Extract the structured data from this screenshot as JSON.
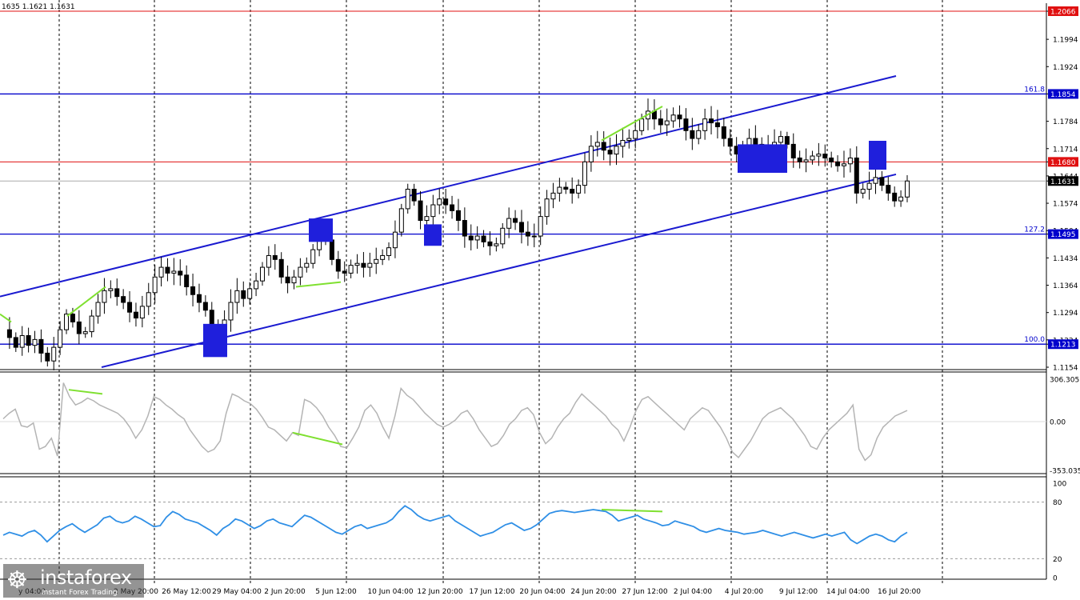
{
  "header": {
    "ohlc_text": "1635 1.1621 1.1631"
  },
  "watermark": {
    "logo_glyph": "☸",
    "brand": "instaforex",
    "tagline": "Instant Forex Trading"
  },
  "colors": {
    "candle": "#000000",
    "channel": "#1a1ad0",
    "hline_blue": "#0000cc",
    "hline_red": "#e01010",
    "box": "#1f1fdc",
    "divergence": "#7fe030",
    "cci": "#b4b4b4",
    "rsi": "#2f8fe6",
    "grid": "#000000",
    "label_bg_blue": "#0000cc",
    "label_bg_red": "#e01010",
    "label_bg_dark": "#000000"
  },
  "chart_data": [
    {
      "type": "candlestick",
      "symbol_pair_hint": "",
      "ylim": [
        1.1154,
        1.2066
      ],
      "y_ticks": [
        "1.2066",
        "1.1994",
        "1.1924",
        "1.1854",
        "1.1784",
        "1.1714",
        "1.1680",
        "1.1644",
        "1.1631",
        "1.1574",
        "1.1504",
        "1.1495",
        "1.1434",
        "1.1364",
        "1.1294",
        "1.1224",
        "1.1213",
        "1.1154"
      ],
      "x_ticks": [
        "26 May 12:00",
        "29 May 04:00",
        "2 Jun 20:00",
        "5 Jun 12:00",
        "10 Jun 04:00",
        "12 Jun 20:00",
        "17 Jun 12:00",
        "20 Jun 04:00",
        "24 Jun 20:00",
        "27 Jun 12:00",
        "2 Jul 04:00",
        "4 Jul 20:00",
        "9 Jul 12:00",
        "14 Jul 04:00",
        "16 Jul 20:00"
      ],
      "x_tick_partial_left": "y 04:00",
      "x_tick_partial_2": "2 May 20:00",
      "levels": [
        {
          "name": "level-2066",
          "price": 1.2066,
          "label": "1.2066",
          "color": "red",
          "fib": ""
        },
        {
          "name": "level-1854",
          "price": 1.1854,
          "label": "1.1854",
          "color": "blue",
          "fib": "161.8"
        },
        {
          "name": "level-1680",
          "price": 1.168,
          "label": "1.1680",
          "color": "red",
          "fib": ""
        },
        {
          "name": "level-1495",
          "price": 1.1495,
          "label": "1.1495",
          "color": "blue",
          "fib": "127.2"
        },
        {
          "name": "level-1213",
          "price": 1.1213,
          "label": "1.1213",
          "color": "blue",
          "fib": "100.0"
        }
      ],
      "current_price": {
        "price": 1.1631,
        "label": "1.1631"
      },
      "series": [
        {
          "name": "",
          "close_path": [
            1.125,
            1.123,
            1.1205,
            1.1235,
            1.121,
            1.1225,
            1.119,
            1.117,
            1.1205,
            1.125,
            1.129,
            1.127,
            1.124,
            1.1245,
            1.1285,
            1.132,
            1.135,
            1.1355,
            1.1335,
            1.132,
            1.1295,
            1.128,
            1.131,
            1.1345,
            1.1385,
            1.141,
            1.1395,
            1.14,
            1.139,
            1.136,
            1.134,
            1.132,
            1.13,
            1.126,
            1.123,
            1.1275,
            1.132,
            1.135,
            1.133,
            1.1355,
            1.1375,
            1.141,
            1.144,
            1.143,
            1.1385,
            1.137,
            1.1385,
            1.141,
            1.142,
            1.1455,
            1.15,
            1.148,
            1.143,
            1.14,
            1.1395,
            1.1415,
            1.142,
            1.141,
            1.142,
            1.143,
            1.144,
            1.146,
            1.15,
            1.156,
            1.161,
            1.158,
            1.153,
            1.154,
            1.157,
            1.1585,
            1.157,
            1.1555,
            1.153,
            1.149,
            1.148,
            1.149,
            1.1475,
            1.1465,
            1.147,
            1.151,
            1.1535,
            1.1525,
            1.15,
            1.149,
            1.149,
            1.154,
            1.1585,
            1.16,
            1.1615,
            1.161,
            1.16,
            1.162,
            1.168,
            1.172,
            1.173,
            1.171,
            1.17,
            1.172,
            1.1735,
            1.174,
            1.176,
            1.179,
            1.181,
            1.179,
            1.1775,
            1.1785,
            1.18,
            1.179,
            1.176,
            1.174,
            1.176,
            1.179,
            1.178,
            1.177,
            1.174,
            1.172,
            1.17,
            1.172,
            1.174,
            1.1725,
            1.1715,
            1.172,
            1.173,
            1.1745,
            1.1725,
            1.169,
            1.168,
            1.1685,
            1.1695,
            1.17,
            1.169,
            1.168,
            1.167,
            1.1675,
            1.169,
            1.16,
            1.161,
            1.1625,
            1.164,
            1.162,
            1.16,
            1.158,
            1.159,
            1.1631
          ]
        }
      ],
      "channel": {
        "upper": [
          [
            0,
            1.1335
          ],
          [
            1120,
            1.19
          ]
        ],
        "lower": [
          [
            127,
            1.1154
          ],
          [
            1120,
            1.1648
          ]
        ]
      },
      "boxes": [
        {
          "name": "box-29-may",
          "x": [
            254,
            284
          ],
          "y": [
            1.1265,
            1.118
          ]
        },
        {
          "name": "box-5-jun",
          "x": [
            386,
            416
          ],
          "y": [
            1.1535,
            1.1475
          ]
        },
        {
          "name": "box-12-jun",
          "x": [
            530,
            552
          ],
          "y": [
            1.152,
            1.1465
          ]
        },
        {
          "name": "box-4-jul",
          "x": [
            922,
            984
          ],
          "y": [
            1.1725,
            1.1652
          ]
        },
        {
          "name": "box-16-jul",
          "x": [
            1086,
            1108
          ],
          "y": [
            1.1734,
            1.166
          ]
        }
      ],
      "divergence_lines": [
        {
          "name": "div-price-1",
          "from": [
            0,
            1.129
          ],
          "to": [
            14,
            1.127
          ]
        },
        {
          "name": "div-price-2",
          "from": [
            84,
            1.1285
          ],
          "to": [
            132,
            1.136
          ]
        },
        {
          "name": "div-price-3",
          "from": [
            370,
            1.136
          ],
          "to": [
            426,
            1.1372
          ]
        },
        {
          "name": "div-price-4",
          "from": [
            752,
            1.1735
          ],
          "to": [
            828,
            1.1822
          ]
        }
      ]
    },
    {
      "type": "line",
      "name_hint": "CCI",
      "ylim": [
        -353.0356,
        306.3051
      ],
      "y_ticks": [
        "306.3051",
        "0.00",
        "-353.0356"
      ],
      "series": [
        {
          "name": "",
          "values": [
            20,
            60,
            90,
            -30,
            -40,
            -10,
            -200,
            -180,
            -120,
            -250,
            280,
            180,
            120,
            140,
            170,
            150,
            120,
            100,
            80,
            60,
            20,
            -40,
            -120,
            -60,
            40,
            180,
            160,
            120,
            90,
            50,
            20,
            -60,
            -120,
            -180,
            -220,
            -200,
            -140,
            60,
            200,
            180,
            150,
            130,
            90,
            30,
            -40,
            -60,
            -100,
            -140,
            -80,
            -100,
            160,
            140,
            100,
            40,
            -40,
            -100,
            -180,
            -190,
            -120,
            -40,
            80,
            120,
            60,
            -40,
            -120,
            40,
            240,
            190,
            160,
            110,
            60,
            20,
            -20,
            -40,
            -20,
            10,
            60,
            80,
            20,
            -60,
            -120,
            -180,
            -160,
            -100,
            -20,
            20,
            80,
            100,
            50,
            -80,
            -160,
            -120,
            -40,
            20,
            60,
            140,
            200,
            160,
            120,
            80,
            40,
            -20,
            -60,
            -140,
            -40,
            80,
            160,
            180,
            140,
            100,
            60,
            20,
            -20,
            -60,
            20,
            60,
            100,
            80,
            20,
            -40,
            -120,
            -220,
            -260,
            -200,
            -140,
            -60,
            20,
            60,
            80,
            100,
            60,
            20,
            -40,
            -100,
            -180,
            -200,
            -120,
            -60,
            -20,
            20,
            60,
            120,
            -200,
            -280,
            -240,
            -120,
            -40,
            0,
            40,
            60,
            80
          ]
        }
      ],
      "divergence_lines": [
        {
          "name": "div-cci-1",
          "from": [
            86,
            230
          ],
          "to": [
            128,
            200
          ]
        },
        {
          "name": "div-cci-2",
          "from": [
            366,
            -80
          ],
          "to": [
            428,
            -165
          ]
        }
      ]
    },
    {
      "type": "line",
      "name_hint": "RSI",
      "ylim": [
        0,
        100
      ],
      "y_ticks": [
        "100",
        "80",
        "20",
        "0"
      ],
      "levels": [
        80,
        20
      ],
      "series": [
        {
          "name": "",
          "values": [
            45,
            48,
            46,
            44,
            48,
            50,
            45,
            38,
            44,
            50,
            54,
            57,
            52,
            48,
            52,
            56,
            63,
            65,
            60,
            58,
            60,
            65,
            62,
            58,
            54,
            55,
            64,
            70,
            67,
            62,
            60,
            58,
            54,
            50,
            45,
            52,
            56,
            62,
            60,
            56,
            52,
            55,
            60,
            62,
            58,
            56,
            54,
            60,
            66,
            64,
            60,
            56,
            52,
            48,
            46,
            50,
            54,
            56,
            52,
            54,
            56,
            58,
            62,
            70,
            76,
            72,
            66,
            62,
            60,
            62,
            64,
            66,
            60,
            56,
            52,
            48,
            44,
            46,
            48,
            52,
            56,
            58,
            54,
            50,
            52,
            56,
            62,
            68,
            70,
            71,
            70,
            69,
            70,
            71,
            72,
            71,
            70,
            66,
            60,
            62,
            64,
            66,
            62,
            60,
            58,
            55,
            56,
            60,
            58,
            56,
            54,
            50,
            48,
            50,
            52,
            50,
            49,
            48,
            46,
            47,
            48,
            50,
            48,
            46,
            44,
            46,
            48,
            46,
            44,
            42,
            44,
            46,
            44,
            46,
            48,
            40,
            36,
            40,
            44,
            46,
            44,
            40,
            38,
            44,
            48
          ]
        }
      ],
      "divergence_lines": [
        {
          "name": "div-rsi-1",
          "from": [
            752,
            72
          ],
          "to": [
            828,
            70
          ]
        }
      ]
    }
  ]
}
